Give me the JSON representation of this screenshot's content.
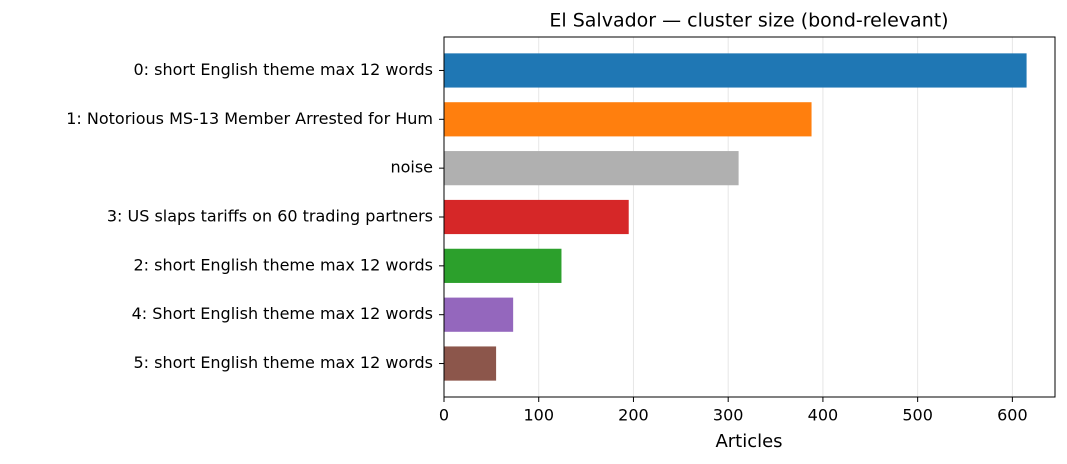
{
  "chart_data": {
    "type": "barh",
    "title": "El Salvador — cluster size (bond-relevant)",
    "xlabel": "Articles",
    "categories": [
      "0: short English theme max 12 words",
      "1: Notorious MS-13 Member Arrested for Hum",
      "noise",
      "3: US slaps tariffs on 60 trading partners",
      "2: short English theme max 12 words",
      "4: Short English theme max 12 words",
      "5: short English theme max 12 words"
    ],
    "values": [
      615,
      388,
      311,
      195,
      124,
      73,
      55
    ],
    "colors": [
      "#1f77b4",
      "#ff7f0e",
      "#b0b0b0",
      "#d62728",
      "#2ca02c",
      "#9467bd",
      "#8c564b"
    ],
    "xlim": [
      0,
      645
    ],
    "xticks": [
      0,
      100,
      200,
      300,
      400,
      500,
      600
    ],
    "grid": true
  }
}
